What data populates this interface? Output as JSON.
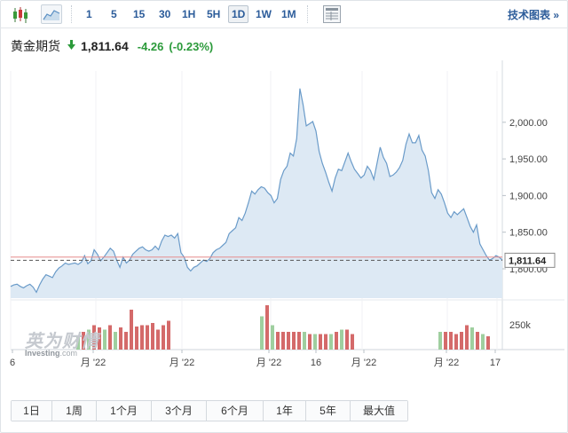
{
  "toolbar": {
    "timeframes": [
      "1",
      "5",
      "15",
      "30",
      "1H",
      "5H",
      "1D",
      "1W",
      "1M"
    ],
    "active_timeframe": "1D",
    "tech_chart_link": "技术图表 »"
  },
  "quote": {
    "name": "黄金期货",
    "direction_icon": "down-arrow-icon",
    "price": "1,811.64",
    "change": "-4.26",
    "change_pct": "(-0.23%)",
    "change_color": "#2b9a3a"
  },
  "chart_data": {
    "type": "area",
    "ylim": [
      1760,
      2070
    ],
    "y_ticks": [
      "2,000.00",
      "1,950.00",
      "1,900.00",
      "1,850.00",
      "1,800.00"
    ],
    "x_tick_labels": [
      "6",
      "月 '22",
      "月 '22",
      "月 '22",
      "16",
      "月 '22",
      "月 '22",
      "17"
    ],
    "last_price_label": "1,811.64",
    "last_price": 1811.64,
    "reference_line": 1816,
    "volume_label": "250k",
    "values": [
      1776,
      1778,
      1779,
      1776,
      1774,
      1777,
      1779,
      1775,
      1768,
      1778,
      1786,
      1792,
      1790,
      1788,
      1796,
      1801,
      1804,
      1808,
      1806,
      1807,
      1808,
      1806,
      1809,
      1818,
      1807,
      1811,
      1826,
      1820,
      1811,
      1816,
      1822,
      1828,
      1824,
      1812,
      1802,
      1816,
      1808,
      1812,
      1820,
      1824,
      1828,
      1830,
      1826,
      1824,
      1826,
      1831,
      1826,
      1838,
      1846,
      1844,
      1846,
      1842,
      1848,
      1822,
      1816,
      1802,
      1797,
      1802,
      1804,
      1808,
      1812,
      1810,
      1814,
      1822,
      1826,
      1828,
      1832,
      1836,
      1848,
      1852,
      1856,
      1870,
      1866,
      1876,
      1890,
      1906,
      1902,
      1908,
      1912,
      1910,
      1904,
      1900,
      1890,
      1896,
      1922,
      1934,
      1940,
      1958,
      1954,
      1978,
      2046,
      2024,
      1995,
      1998,
      2001,
      1988,
      1960,
      1944,
      1932,
      1918,
      1906,
      1924,
      1936,
      1934,
      1946,
      1958,
      1946,
      1936,
      1930,
      1924,
      1928,
      1940,
      1934,
      1922,
      1944,
      1966,
      1952,
      1944,
      1926,
      1928,
      1932,
      1938,
      1948,
      1970,
      1984,
      1972,
      1972,
      1982,
      1962,
      1954,
      1934,
      1904,
      1896,
      1908,
      1902,
      1890,
      1876,
      1870,
      1878,
      1874,
      1878,
      1882,
      1870,
      1858,
      1850,
      1860,
      1834,
      1826,
      1818,
      1812,
      1814,
      1818,
      1816,
      1812
    ],
    "volume_bars": [
      {
        "v": 0.3,
        "c": "green"
      },
      {
        "v": 0.4,
        "c": "red"
      },
      {
        "v": 0.45,
        "c": "green"
      },
      {
        "v": 0.55,
        "c": "red"
      },
      {
        "v": 0.5,
        "c": "red"
      },
      {
        "v": 0.45,
        "c": "green"
      },
      {
        "v": 0.55,
        "c": "red"
      },
      {
        "v": 0.4,
        "c": "green"
      },
      {
        "v": 0.5,
        "c": "red"
      },
      {
        "v": 0.4,
        "c": "red"
      },
      {
        "v": 0.9,
        "c": "red"
      },
      {
        "v": 0.52,
        "c": "red"
      },
      {
        "v": 0.55,
        "c": "red"
      },
      {
        "v": 0.55,
        "c": "red"
      },
      {
        "v": 0.6,
        "c": "red"
      },
      {
        "v": 0.45,
        "c": "red"
      },
      {
        "v": 0.55,
        "c": "red"
      },
      {
        "v": 0.65,
        "c": "red"
      },
      {
        "v": 0.75,
        "c": "green"
      },
      {
        "v": 1.0,
        "c": "red"
      },
      {
        "v": 0.55,
        "c": "green"
      },
      {
        "v": 0.4,
        "c": "red"
      },
      {
        "v": 0.4,
        "c": "red"
      },
      {
        "v": 0.4,
        "c": "red"
      },
      {
        "v": 0.4,
        "c": "red"
      },
      {
        "v": 0.4,
        "c": "red"
      },
      {
        "v": 0.4,
        "c": "green"
      },
      {
        "v": 0.35,
        "c": "red"
      },
      {
        "v": 0.35,
        "c": "green"
      },
      {
        "v": 0.35,
        "c": "red"
      },
      {
        "v": 0.35,
        "c": "red"
      },
      {
        "v": 0.35,
        "c": "green"
      },
      {
        "v": 0.4,
        "c": "red"
      },
      {
        "v": 0.45,
        "c": "green"
      },
      {
        "v": 0.45,
        "c": "red"
      },
      {
        "v": 0.35,
        "c": "red"
      },
      {
        "v": 0.4,
        "c": "green"
      },
      {
        "v": 0.4,
        "c": "red"
      },
      {
        "v": 0.4,
        "c": "red"
      },
      {
        "v": 0.35,
        "c": "red"
      },
      {
        "v": 0.4,
        "c": "red"
      },
      {
        "v": 0.55,
        "c": "red"
      },
      {
        "v": 0.5,
        "c": "green"
      },
      {
        "v": 0.4,
        "c": "red"
      },
      {
        "v": 0.35,
        "c": "green"
      },
      {
        "v": 0.3,
        "c": "red"
      }
    ],
    "colors": {
      "line": "#6a9bc9",
      "fill": "#dde9f4",
      "ref_line": "#e58c8c",
      "last_dash": "#555555",
      "vol_green": "#9fcf9f",
      "vol_red": "#d46a6a"
    }
  },
  "watermark": {
    "cn": "英为财情",
    "en": "Investing",
    "en_suffix": ".com"
  },
  "ranges": [
    "1日",
    "1周",
    "1个月",
    "3个月",
    "6个月",
    "1年",
    "5年",
    "最大值"
  ]
}
